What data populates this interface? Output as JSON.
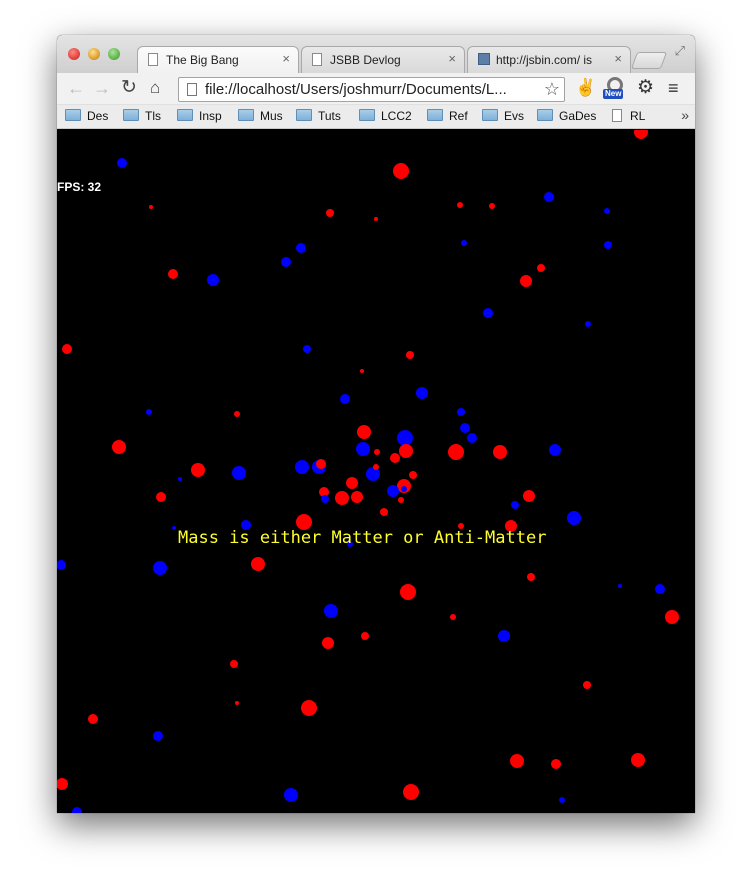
{
  "browser": {
    "tabs": [
      {
        "title": "The Big Bang",
        "icon": "page-icon",
        "active": true
      },
      {
        "title": "JSBB Devlog",
        "icon": "page-icon",
        "active": false
      },
      {
        "title": "http://jsbin.com/ is",
        "icon": "site-icon",
        "active": false
      }
    ],
    "address": "file://localhost/Users/joshmurr/Documents/L...",
    "extension_badge": "New",
    "bookmarks": [
      {
        "label": "Des",
        "icon": "folder-icon"
      },
      {
        "label": "Tls",
        "icon": "folder-icon"
      },
      {
        "label": "Insp",
        "icon": "folder-icon"
      },
      {
        "label": "Mus",
        "icon": "folder-icon"
      },
      {
        "label": "Tuts",
        "icon": "folder-icon"
      },
      {
        "label": "LCC2",
        "icon": "folder-icon"
      },
      {
        "label": "Ref",
        "icon": "folder-icon"
      },
      {
        "label": "Evs",
        "icon": "folder-icon"
      },
      {
        "label": "GaDes",
        "icon": "folder-icon"
      },
      {
        "label": "RL",
        "icon": "page-icon"
      }
    ],
    "bookmarks_more": "»",
    "icons": {
      "back": "←",
      "forward": "→",
      "reload": "↻",
      "home": "⌂",
      "star": "☆",
      "settings": "⚙",
      "menu": "≡",
      "close": "×"
    }
  },
  "game": {
    "fps_label": "FPS: 32",
    "message": "Mass is either Matter or Anti-Matter",
    "colors": {
      "background": "#000000",
      "matter": "#ff0000",
      "anti_matter": "#0000ff",
      "message": "#ffff2a",
      "fps": "#ffffff"
    }
  }
}
